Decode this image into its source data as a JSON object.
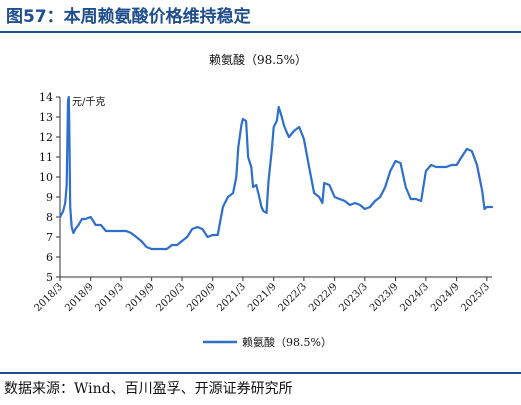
{
  "figure": {
    "title": "图57：本周赖氨酸价格维持稳定",
    "source": "数据来源：Wind、百川盈孚、开源证券研究所"
  },
  "chart_data": {
    "type": "line",
    "title": "赖氨酸（98.5%）",
    "ylabel": "元/千克",
    "xlabel": "",
    "ylim": [
      5,
      14
    ],
    "yticks": [
      5,
      6,
      7,
      8,
      9,
      10,
      11,
      12,
      13,
      14
    ],
    "xlim": [
      "2018-03",
      "2025-04"
    ],
    "xticks": [
      "2018/3",
      "2018/9",
      "2019/3",
      "2019/9",
      "2020/3",
      "2020/9",
      "2021/3",
      "2021/9",
      "2022/3",
      "2022/9",
      "2023/3",
      "2023/9",
      "2024/3",
      "2024/9",
      "2025/3"
    ],
    "grid": false,
    "legend": "bottom-center",
    "color": "#2e6fcc",
    "series": [
      {
        "name": "赖氨酸（98.5%）",
        "x": [
          "2018-03-01",
          "2018-03-20",
          "2018-04-01",
          "2018-04-10",
          "2018-04-18",
          "2018-04-23",
          "2018-04-26",
          "2018-05-01",
          "2018-05-10",
          "2018-05-20",
          "2018-06-01",
          "2018-06-20",
          "2018-07-10",
          "2018-08-01",
          "2018-09-01",
          "2018-10-01",
          "2018-11-01",
          "2018-12-01",
          "2019-01-01",
          "2019-02-01",
          "2019-03-01",
          "2019-04-01",
          "2019-05-01",
          "2019-06-01",
          "2019-07-01",
          "2019-08-01",
          "2019-09-01",
          "2019-10-01",
          "2019-11-01",
          "2019-12-01",
          "2020-01-01",
          "2020-02-01",
          "2020-03-01",
          "2020-04-01",
          "2020-05-01",
          "2020-06-01",
          "2020-07-01",
          "2020-08-01",
          "2020-09-01",
          "2020-10-01",
          "2020-11-01",
          "2020-12-01",
          "2021-01-01",
          "2021-01-20",
          "2021-02-01",
          "2021-02-20",
          "2021-03-01",
          "2021-03-20",
          "2021-04-01",
          "2021-04-20",
          "2021-05-01",
          "2021-05-20",
          "2021-06-01",
          "2021-06-20",
          "2021-07-01",
          "2021-07-20",
          "2021-08-01",
          "2021-08-20",
          "2021-09-01",
          "2021-09-20",
          "2021-10-01",
          "2021-10-20",
          "2021-11-01",
          "2021-11-20",
          "2021-12-01",
          "2022-01-01",
          "2022-02-01",
          "2022-03-01",
          "2022-04-01",
          "2022-05-01",
          "2022-06-01",
          "2022-06-20",
          "2022-07-01",
          "2022-08-01",
          "2022-09-01",
          "2022-10-01",
          "2022-11-01",
          "2022-12-01",
          "2023-01-01",
          "2023-02-01",
          "2023-03-01",
          "2023-04-01",
          "2023-05-01",
          "2023-06-01",
          "2023-07-01",
          "2023-08-01",
          "2023-09-01",
          "2023-10-01",
          "2023-11-01",
          "2023-12-01",
          "2024-01-01",
          "2024-02-01",
          "2024-03-01",
          "2024-04-01",
          "2024-05-01",
          "2024-06-01",
          "2024-07-01",
          "2024-08-01",
          "2024-09-01",
          "2024-10-01",
          "2024-11-01",
          "2024-12-01",
          "2025-01-01",
          "2025-02-01",
          "2025-02-15",
          "2025-03-01",
          "2025-04-01"
        ],
        "values": [
          8.0,
          8.3,
          8.7,
          9.6,
          13.8,
          14.0,
          12.5,
          8.5,
          7.5,
          7.2,
          7.4,
          7.6,
          7.9,
          7.9,
          8.0,
          7.6,
          7.6,
          7.3,
          7.3,
          7.3,
          7.3,
          7.3,
          7.2,
          7.0,
          6.8,
          6.5,
          6.4,
          6.4,
          6.4,
          6.4,
          6.6,
          6.6,
          6.8,
          7.0,
          7.4,
          7.5,
          7.4,
          7.0,
          7.1,
          7.1,
          8.5,
          9.0,
          9.2,
          10.0,
          11.5,
          12.6,
          12.9,
          12.8,
          11.0,
          10.5,
          9.5,
          9.6,
          9.2,
          8.5,
          8.3,
          8.2,
          9.8,
          11.3,
          12.5,
          12.8,
          13.5,
          13.0,
          12.6,
          12.2,
          12.0,
          12.3,
          12.5,
          11.9,
          10.5,
          9.2,
          9.0,
          8.7,
          9.7,
          9.6,
          9.0,
          8.9,
          8.8,
          8.6,
          8.7,
          8.6,
          8.4,
          8.5,
          8.8,
          9.0,
          9.5,
          10.3,
          10.8,
          10.7,
          9.5,
          8.9,
          8.9,
          8.8,
          10.3,
          10.6,
          10.5,
          10.5,
          10.5,
          10.6,
          10.6,
          11.0,
          11.4,
          11.3,
          10.6,
          9.3,
          8.4,
          8.5,
          8.5
        ]
      }
    ]
  }
}
